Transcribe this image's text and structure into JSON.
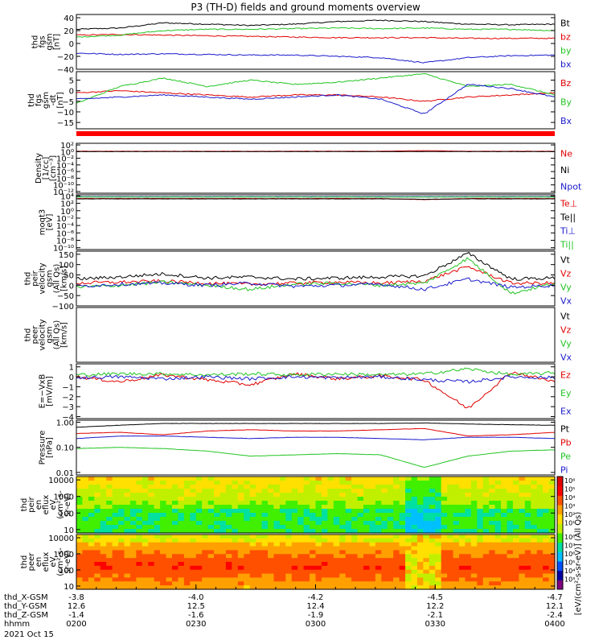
{
  "title": "P3 (TH-D) fields and ground moments overview",
  "colors": {
    "black": "#000000",
    "red": "#e00000",
    "green": "#22c422",
    "blue": "#1a1acc"
  },
  "time_axis": {
    "hhmm": [
      "0200",
      "0230",
      "0300",
      "0330",
      "0400"
    ],
    "rows": [
      {
        "label": "thd_X-GSM",
        "values": [
          "-3.8",
          "-4.0",
          "-4.2",
          "-4.5",
          "-4.7"
        ]
      },
      {
        "label": "thd_Y-GSM",
        "values": [
          "12.6",
          "12.5",
          "12.4",
          "12.2",
          "12.1"
        ]
      },
      {
        "label": "thd_Z-GSM",
        "values": [
          "-1.4",
          "-1.6",
          "-1.9",
          "-2.1",
          "-2.4"
        ]
      },
      {
        "label": "hhmm",
        "values": []
      }
    ],
    "date": "2021 Oct 15"
  },
  "chart_data": [
    {
      "type": "line",
      "id": "fgs_gsm",
      "ylabel": [
        "thd",
        "fgs",
        "gsm",
        "[nT]"
      ],
      "yticks": [
        "40",
        "20",
        "0",
        "−20",
        "−40"
      ],
      "tickvals": [
        40,
        20,
        0,
        -20,
        -40
      ],
      "ylim": [
        -40,
        45
      ],
      "series": [
        {
          "name": "Bt",
          "color": "black",
          "values": [
            22,
            24,
            32,
            30,
            28,
            30,
            34,
            36,
            34,
            30,
            29,
            30
          ]
        },
        {
          "name": "bz",
          "color": "red",
          "values": [
            13,
            14,
            13,
            12,
            11,
            10,
            9,
            9,
            9,
            8,
            8,
            8
          ]
        },
        {
          "name": "by",
          "color": "green",
          "values": [
            10,
            13,
            20,
            22,
            22,
            23,
            24,
            23,
            24,
            22,
            22,
            20
          ]
        },
        {
          "name": "bx",
          "color": "blue",
          "values": [
            -15,
            -17,
            -16,
            -17,
            -18,
            -18,
            -20,
            -22,
            -30,
            -22,
            -19,
            -18
          ]
        }
      ]
    },
    {
      "type": "line",
      "id": "fgs_gsm_dt",
      "ylabel": [
        "thd",
        "fgs",
        "gsm",
        "-dt",
        "[nT]"
      ],
      "yticks": [
        "5",
        "0",
        "−5",
        "−10",
        "−15"
      ],
      "tickvals": [
        5,
        0,
        -5,
        -10,
        -15
      ],
      "ylim": [
        -18,
        9
      ],
      "series": [
        {
          "name": "Bz",
          "color": "red",
          "values": [
            -1,
            0,
            -1,
            -2,
            -3,
            -2,
            -2,
            -3,
            -5,
            -3,
            -2,
            -1
          ]
        },
        {
          "name": "By",
          "color": "green",
          "values": [
            -6,
            2,
            6,
            2,
            5,
            3,
            4,
            6,
            8,
            2,
            3,
            -2
          ]
        },
        {
          "name": "Bx",
          "color": "blue",
          "values": [
            -4,
            -3,
            -2,
            -3,
            -4,
            -3,
            -2,
            -4,
            -11,
            3,
            1,
            -3
          ]
        }
      ]
    },
    {
      "type": "line",
      "id": "density",
      "log": true,
      "ylabel": [
        "Density",
        "[1/cc]",
        "[cm⁻³]"
      ],
      "yticks": [
        "10²",
        "10⁰",
        "10⁻²",
        "10⁻⁴",
        "10⁻⁶",
        "10⁻⁸",
        "10⁻¹⁰",
        "10⁻¹²"
      ],
      "tickvals": [
        2,
        0,
        -2,
        -4,
        -6,
        -8,
        -10,
        -12
      ],
      "ylim": [
        -12.5,
        2.5
      ],
      "series": [
        {
          "name": "Ne",
          "color": "red",
          "values": [
            0.1,
            0.1,
            0.1,
            0.1,
            0.1,
            0.1,
            0.1,
            0.1,
            0.3,
            0.1,
            0.1,
            0.1
          ]
        },
        {
          "name": "Ni",
          "color": "black",
          "values": [
            0.0,
            0.0,
            0.0,
            0.0,
            0.0,
            0.0,
            0.0,
            0.0,
            0.0,
            0.0,
            0.0,
            0.0
          ]
        },
        {
          "name": "Npot",
          "color": "blue",
          "values": []
        }
      ]
    },
    {
      "type": "line",
      "id": "temperature",
      "log": true,
      "ylabel": [
        "moqt3",
        "[eV]"
      ],
      "yticks": [
        "10⁴",
        "10²",
        "10⁰",
        "10⁻²",
        "10⁻⁴",
        "10⁻⁶",
        "10⁻⁸",
        "10⁻¹⁰"
      ],
      "tickvals": [
        4,
        2,
        0,
        -2,
        -4,
        -6,
        -8,
        -10
      ],
      "ylim": [
        -10.5,
        4.3
      ],
      "series": [
        {
          "name": "Te⊥",
          "color": "red",
          "values": [
            3.3,
            3.3,
            3.3,
            3.3,
            3.3,
            3.3,
            3.3,
            3.3,
            3.0,
            3.3,
            3.3,
            3.3
          ]
        },
        {
          "name": "Te||",
          "color": "black",
          "values": [
            3.2,
            3.2,
            3.2,
            3.2,
            3.2,
            3.2,
            3.2,
            3.2,
            3.1,
            3.2,
            3.2,
            3.2
          ]
        },
        {
          "name": "Ti⊥",
          "color": "blue",
          "values": [
            3.8,
            3.8,
            3.8,
            3.8,
            3.8,
            3.8,
            3.8,
            3.8,
            3.8,
            3.8,
            3.8,
            3.8
          ]
        },
        {
          "name": "Ti||",
          "color": "green",
          "values": [
            3.7,
            3.7,
            3.7,
            3.7,
            3.7,
            3.7,
            3.7,
            3.7,
            3.7,
            3.7,
            3.7,
            3.7
          ]
        }
      ]
    },
    {
      "type": "line",
      "id": "peir_velocity",
      "ylabel": [
        "thd",
        "peir",
        "velocity",
        "gsm",
        "(All Qs)",
        "[km/s]"
      ],
      "yticks": [
        "150",
        "100",
        "50",
        "0",
        "−50",
        "−100"
      ],
      "tickvals": [
        150,
        100,
        50,
        0,
        -50,
        -100
      ],
      "ylim": [
        -100,
        165
      ],
      "series": [
        {
          "name": "Vt",
          "color": "black",
          "values": [
            30,
            40,
            55,
            35,
            40,
            30,
            35,
            40,
            45,
            155,
            30,
            35
          ]
        },
        {
          "name": "Vz",
          "color": "red",
          "values": [
            10,
            15,
            20,
            10,
            5,
            10,
            15,
            10,
            20,
            90,
            10,
            10
          ]
        },
        {
          "name": "Vy",
          "color": "green",
          "values": [
            -10,
            0,
            15,
            0,
            -20,
            5,
            10,
            0,
            10,
            130,
            -40,
            10
          ]
        },
        {
          "name": "Vx",
          "color": "blue",
          "values": [
            -5,
            5,
            10,
            0,
            10,
            -5,
            0,
            5,
            -20,
            30,
            -10,
            0
          ]
        }
      ]
    },
    {
      "type": "line",
      "id": "peer_velocity",
      "ylabel": [
        "thd",
        "peer",
        "velocity",
        "gsm",
        "(All Qs)",
        "[km/s]"
      ],
      "yticks": [],
      "tickvals": [],
      "ylim": [
        0,
        1
      ],
      "series": [
        {
          "name": "Vt",
          "color": "black",
          "values": []
        },
        {
          "name": "Vz",
          "color": "red",
          "values": []
        },
        {
          "name": "Vy",
          "color": "green",
          "values": []
        },
        {
          "name": "Vx",
          "color": "blue",
          "values": []
        }
      ]
    },
    {
      "type": "line",
      "id": "efield",
      "ylabel": [
        "E=−VxB",
        "[mV/m]"
      ],
      "yticks": [
        "1",
        "0",
        "−1",
        "−2",
        "−3",
        "−4"
      ],
      "tickvals": [
        1,
        0,
        -1,
        -2,
        -3,
        -4
      ],
      "ylim": [
        -4.2,
        1.3
      ],
      "series": [
        {
          "name": "Ez",
          "color": "red",
          "values": [
            0,
            -0.5,
            0.2,
            -0.3,
            -0.8,
            0.3,
            -0.2,
            0.1,
            -0.3,
            -3.2,
            0.5,
            -0.5
          ]
        },
        {
          "name": "Ey",
          "color": "green",
          "values": [
            0.2,
            0.3,
            0.3,
            0.2,
            0.3,
            0.2,
            0.3,
            0.2,
            0.3,
            0.8,
            0.2,
            0.4
          ]
        },
        {
          "name": "Ex",
          "color": "blue",
          "values": [
            -0.1,
            0,
            -0.2,
            0,
            -0.2,
            0,
            -0.1,
            0,
            -0.3,
            -0.5,
            0,
            -0.1
          ]
        }
      ]
    },
    {
      "type": "line",
      "id": "pressure",
      "log": true,
      "ylabel": [
        "Pressure",
        "[nPa]"
      ],
      "yticks": [
        "1.00",
        "0.10",
        "0.01"
      ],
      "tickvals": [
        0,
        -1,
        -2
      ],
      "ylim": [
        -2.1,
        0.08
      ],
      "series": [
        {
          "name": "Pt",
          "color": "black",
          "values": [
            -0.2,
            -0.12,
            -0.05,
            -0.05,
            -0.05,
            -0.05,
            -0.05,
            -0.05,
            -0.03,
            -0.07,
            -0.1,
            -0.12
          ]
        },
        {
          "name": "Pb",
          "color": "red",
          "values": [
            -0.45,
            -0.4,
            -0.5,
            -0.35,
            -0.3,
            -0.35,
            -0.35,
            -0.3,
            -0.25,
            -0.55,
            -0.5,
            -0.4
          ]
        },
        {
          "name": "Pe",
          "color": "green",
          "values": [
            -1.05,
            -1.0,
            -1.05,
            -1.15,
            -1.35,
            -1.3,
            -1.25,
            -1.3,
            -1.8,
            -1.35,
            -1.15,
            -1.1
          ]
        },
        {
          "name": "Pi",
          "color": "blue",
          "values": [
            -0.65,
            -0.55,
            -0.55,
            -0.6,
            -0.65,
            -0.6,
            -0.6,
            -0.65,
            -0.7,
            -0.6,
            -0.6,
            -0.65
          ]
        }
      ]
    },
    {
      "type": "heatmap",
      "id": "peir_en_eflux",
      "ylabel": [
        "thd",
        "peir",
        "en",
        "eflux",
        "eV",
        "(cm²-s-",
        "sr-eV)"
      ],
      "yticks": [
        "10000",
        "1000",
        "100",
        "10"
      ],
      "tickvals": [
        4,
        3,
        2,
        1
      ],
      "ylim": [
        0.8,
        4.2
      ]
    },
    {
      "type": "heatmap",
      "id": "peer_en_eflux",
      "ylabel": [
        "thd",
        "peer",
        "en",
        "eflux",
        "eV",
        "(cm²-s-",
        "sr-eV)"
      ],
      "yticks": [
        "10000",
        "1000",
        "100",
        "10"
      ],
      "tickvals": [
        4,
        3,
        2,
        1
      ],
      "ylim": [
        0.8,
        4.2
      ]
    }
  ],
  "colorbar": {
    "ticks_top": [
      "10⁶",
      "10⁵",
      "10⁴",
      "10³",
      "10²",
      "10¹"
    ],
    "ticks_bottom": [
      "10⁸",
      "10⁷",
      "10⁶",
      "10⁵",
      "10⁴",
      "10³"
    ],
    "label": "[eV/(cm²-s-sr-eV)] (All Qs)"
  }
}
